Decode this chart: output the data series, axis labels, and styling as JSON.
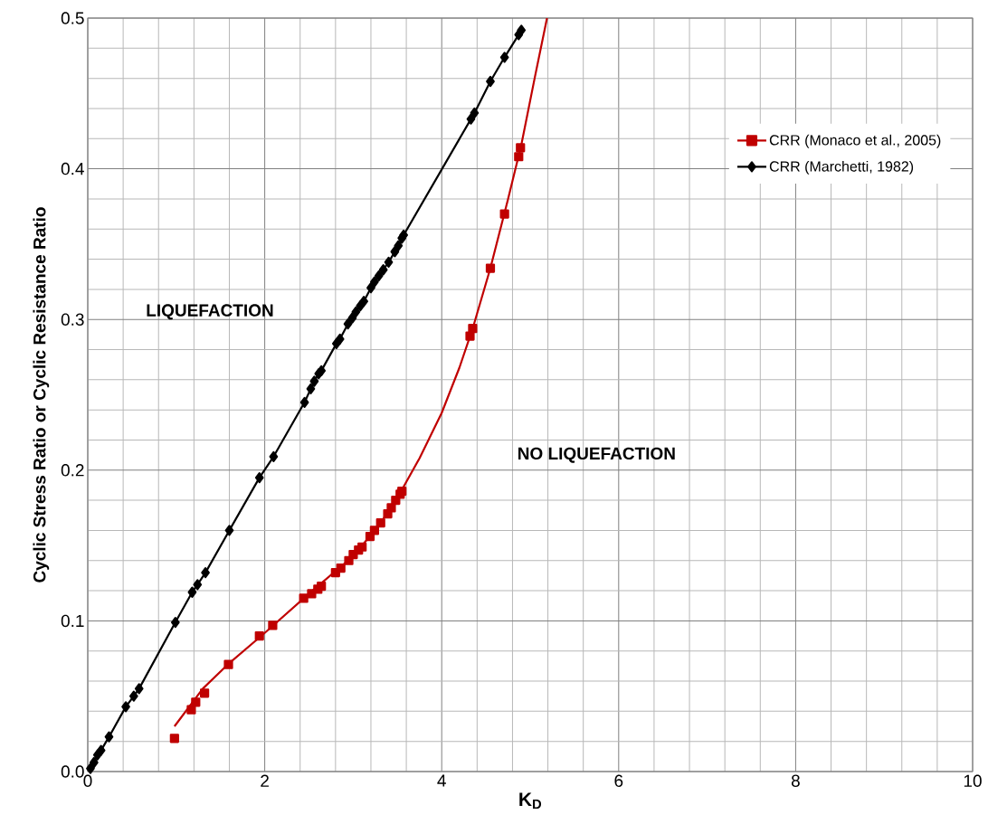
{
  "chart_data": {
    "type": "line",
    "xlabel": "K$_{D}$",
    "ylabel": "Cyclic Stress Ratio or Cyclic Resistance Ratio",
    "xlim": [
      0,
      10
    ],
    "ylim": [
      0,
      0.5
    ],
    "xticks": [
      0,
      2,
      4,
      6,
      8,
      10
    ],
    "yticks": [
      {
        "value": 0,
        "label": "0.0"
      },
      0.1,
      0.2,
      0.3,
      0.4,
      0.5
    ],
    "grid": true,
    "legend": "top right",
    "annotations": [
      "LIQUEFACTION",
      "NO LIQUEFACTION"
    ],
    "series": [
      {
        "name": "CRR (Monaco et al., 2005)",
        "type": "scatter",
        "marker": "square",
        "color": "#c00000",
        "x": [
          0.98,
          1.17,
          1.22,
          1.32,
          1.59,
          1.94,
          2.09,
          2.44,
          2.53,
          2.6,
          2.64,
          2.8,
          2.86,
          2.95,
          3.0,
          3.06,
          3.1,
          3.19,
          3.24,
          3.31,
          3.39,
          3.43,
          3.48,
          3.53,
          3.55,
          4.32,
          4.35,
          4.55,
          4.71,
          4.87,
          4.89
        ],
        "values": [
          0.022,
          0.041,
          0.046,
          0.052,
          0.071,
          0.09,
          0.097,
          0.115,
          0.118,
          0.121,
          0.123,
          0.132,
          0.135,
          0.14,
          0.144,
          0.147,
          0.149,
          0.156,
          0.16,
          0.165,
          0.171,
          0.175,
          0.18,
          0.184,
          0.186,
          0.289,
          0.294,
          0.334,
          0.37,
          0.408,
          0.414
        ]
      },
      {
        "name": "CRR (Marchetti, 1982)",
        "type": "line",
        "marker": "diamond",
        "color": "#000000",
        "x": [
          0.03,
          0.07,
          0.11,
          0.15,
          0.24,
          0.43,
          0.52,
          0.58,
          0.99,
          1.18,
          1.24,
          1.33,
          1.6,
          1.94,
          2.1,
          2.45,
          2.52,
          2.56,
          2.61,
          2.64,
          2.81,
          2.85,
          2.94,
          2.99,
          3.03,
          3.08,
          3.12,
          3.2,
          3.24,
          3.29,
          3.34,
          3.4,
          3.47,
          3.51,
          3.55,
          3.57,
          4.33,
          4.37,
          4.55,
          4.71,
          4.87,
          4.9
        ],
        "values": [
          0.002,
          0.006,
          0.011,
          0.014,
          0.023,
          0.043,
          0.05,
          0.055,
          0.099,
          0.119,
          0.124,
          0.132,
          0.16,
          0.195,
          0.209,
          0.245,
          0.254,
          0.259,
          0.264,
          0.266,
          0.284,
          0.287,
          0.297,
          0.301,
          0.305,
          0.309,
          0.312,
          0.321,
          0.325,
          0.329,
          0.333,
          0.338,
          0.345,
          0.349,
          0.354,
          0.356,
          0.433,
          0.437,
          0.458,
          0.474,
          0.489,
          0.492
        ]
      },
      {
        "marker": "none",
        "color": "#c00000",
        "x": [
          0.98,
          1.3,
          1.6,
          2.0,
          2.5,
          3.0,
          3.3,
          3.55,
          3.75,
          4.0,
          4.2,
          4.35,
          4.55,
          4.75,
          4.9,
          5.05,
          5.19
        ],
        "values": [
          0.03,
          0.055,
          0.072,
          0.092,
          0.118,
          0.143,
          0.164,
          0.187,
          0.208,
          0.238,
          0.268,
          0.294,
          0.334,
          0.38,
          0.416,
          0.46,
          0.5
        ]
      }
    ]
  }
}
